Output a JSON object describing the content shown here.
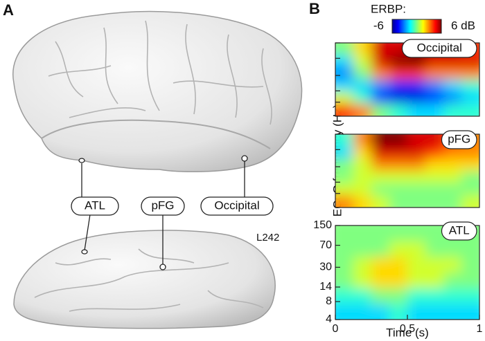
{
  "panel_a": {
    "label": "A",
    "regions": [
      "ATL",
      "pFG",
      "Occipital"
    ],
    "subject": "L242"
  },
  "panel_b": {
    "label": "B",
    "colorbar": {
      "title": "ERBP:",
      "cmin": -6,
      "cmax": {
        "value": 6,
        "label": "6 dB"
      }
    },
    "ylabel": "ECoG frequency (Hz)",
    "xlabel": "Time (s)",
    "ylim": [
      4,
      150
    ],
    "yticks": [
      4,
      8,
      14,
      30,
      70,
      150
    ],
    "log_y": true,
    "xlim": [
      0,
      1
    ],
    "xticks": [
      0,
      0.5,
      1
    ],
    "panels": [
      {
        "name": "Occipital",
        "values": [
          [
            0,
            2,
            5,
            5,
            6,
            5,
            5,
            4
          ],
          [
            -2,
            1,
            5,
            6,
            6,
            5,
            5,
            5
          ],
          [
            -3,
            0,
            3,
            4,
            4,
            3,
            3,
            3
          ],
          [
            -2,
            -2,
            -3,
            -4,
            -4,
            -3,
            -2,
            -1
          ],
          [
            1,
            -1,
            -4,
            -5,
            -5,
            -4,
            -3,
            -2
          ],
          [
            4,
            3,
            0,
            -1,
            -2,
            -2,
            -1,
            -1
          ]
        ]
      },
      {
        "name": "pFG",
        "values": [
          [
            -1,
            3,
            6,
            6,
            5,
            5,
            4,
            3
          ],
          [
            -2,
            2,
            5,
            5,
            5,
            4,
            3,
            3
          ],
          [
            0,
            1,
            3,
            3,
            3,
            2,
            2,
            2
          ],
          [
            0,
            1,
            1,
            1,
            1,
            1,
            1,
            0
          ],
          [
            1,
            1,
            0,
            0,
            0,
            0,
            0,
            0
          ],
          [
            3,
            2,
            1,
            0,
            0,
            0,
            0,
            1
          ]
        ]
      },
      {
        "name": "ATL",
        "values": [
          [
            0,
            0,
            0,
            0,
            0,
            0,
            0,
            0
          ],
          [
            0,
            0,
            0,
            1,
            1,
            0,
            0,
            0
          ],
          [
            0,
            1,
            2,
            2,
            1,
            1,
            1,
            0
          ],
          [
            0,
            1,
            2,
            2,
            1,
            1,
            0,
            0
          ],
          [
            -1,
            -1,
            0,
            0,
            -1,
            -1,
            -1,
            -1
          ],
          [
            -2,
            -2,
            -2,
            -1,
            -2,
            -2,
            -2,
            -2
          ]
        ]
      }
    ]
  }
}
